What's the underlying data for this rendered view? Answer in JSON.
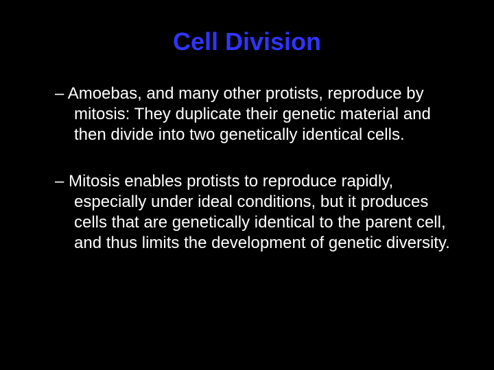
{
  "slide": {
    "title": "Cell Division",
    "title_color": "#3333ff",
    "title_fontsize": 36,
    "background_color": "#000000",
    "body_color": "#ffffff",
    "body_fontsize": 24,
    "bullets": [
      {
        "dash": "–  ",
        "text": "Amoebas, and many other protists, reproduce by mitosis: They duplicate their genetic material and then divide into two genetically identical cells."
      },
      {
        "dash": "–  ",
        "text": "Mitosis enables protists to reproduce rapidly, especially under ideal conditions, but it produces cells that are genetically identical to the parent cell, and thus limits the development of genetic diversity."
      }
    ]
  }
}
